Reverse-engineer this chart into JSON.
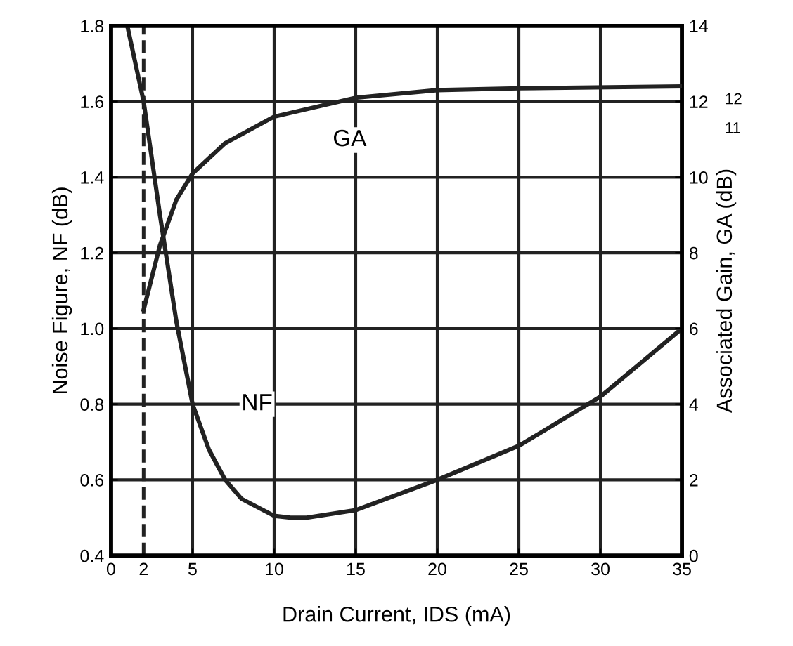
{
  "chart_data": {
    "type": "line",
    "xlabel": "Drain Current, IDS (mA)",
    "ylabel": "Noise Figure, NF (dB)",
    "y2label": "Associated Gain, GA (dB)",
    "xlim": [
      0,
      35
    ],
    "xticks": [
      0,
      2,
      5,
      10,
      15,
      20,
      25,
      30,
      35
    ],
    "ylim": [
      0.4,
      1.8
    ],
    "yticks": [
      0.4,
      0.6,
      0.8,
      {
        "value": 1.0,
        "label": "1.0"
      },
      1.2,
      1.4,
      1.6,
      1.8
    ],
    "y2lim": [
      0,
      14
    ],
    "y2ticks": [
      0,
      2,
      4,
      6,
      8,
      10,
      12,
      14
    ],
    "grid": true,
    "legend": false,
    "marker": "none",
    "line_style": "solid",
    "series": [
      {
        "name": "NF",
        "color": "#222222",
        "x": [
          1,
          2,
          3,
          4,
          5,
          6,
          7,
          8,
          10,
          11,
          12,
          15,
          20,
          25,
          30,
          35
        ],
        "values": [
          1.8,
          1.6,
          1.3,
          1.02,
          0.8,
          0.68,
          0.6,
          0.55,
          0.505,
          0.5,
          0.5,
          0.52,
          0.6,
          0.69,
          0.82,
          1.0
        ]
      },
      {
        "name": "GA",
        "color": "#222222",
        "axis": "y2",
        "x": [
          2,
          3,
          4,
          5,
          7,
          10,
          15,
          20,
          25,
          35
        ],
        "values": [
          6.5,
          8.2,
          9.4,
          10.1,
          10.9,
          11.6,
          12.1,
          12.3,
          12.35,
          12.4
        ]
      }
    ],
    "ref_lines": [
      {
        "axis": "x",
        "value": 2,
        "color": "#222222",
        "line_style": "dashed"
      }
    ],
    "annotations": [
      "12",
      "11"
    ]
  }
}
